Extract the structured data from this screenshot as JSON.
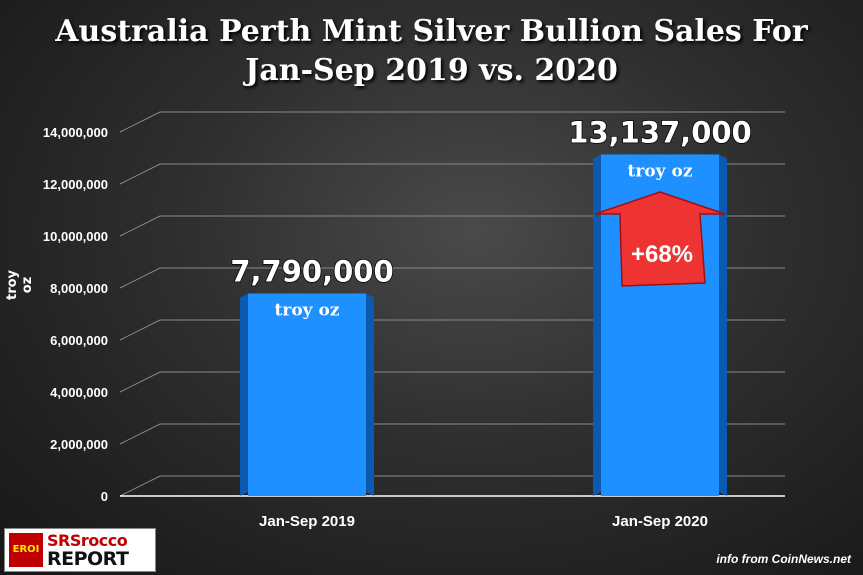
{
  "title_line1": "Australia Perth Mint Silver Bullion Sales For",
  "title_line2": "Jan-Sep 2019 vs. 2020",
  "chart_data": {
    "type": "bar",
    "categories": [
      "Jan-Sep 2019",
      "Jan-Sep 2020"
    ],
    "values": [
      7790000,
      13137000
    ],
    "value_labels": [
      "7,790,000",
      "13,137,000"
    ],
    "unit_label": "troy oz",
    "ylabel": "troy oz",
    "ylim": [
      0,
      14000000
    ],
    "yticks": [
      0,
      2000000,
      4000000,
      6000000,
      8000000,
      10000000,
      12000000,
      14000000
    ],
    "ytick_labels": [
      "0",
      "2,000,000",
      "4,000,000",
      "6,000,000",
      "8,000,000",
      "10,000,000",
      "12,000,000",
      "14,000,000"
    ],
    "annotation": "+68%",
    "grid": true,
    "colors": {
      "bar": "#1e90ff",
      "bar_side": "#0b5ab0",
      "arrow": "#ee3333",
      "grid": "#8a8a8a"
    }
  },
  "logo": {
    "badge": "EROI",
    "line1": "SRSrocco",
    "line2": "REPORT"
  },
  "source": "info from CoinNews.net"
}
